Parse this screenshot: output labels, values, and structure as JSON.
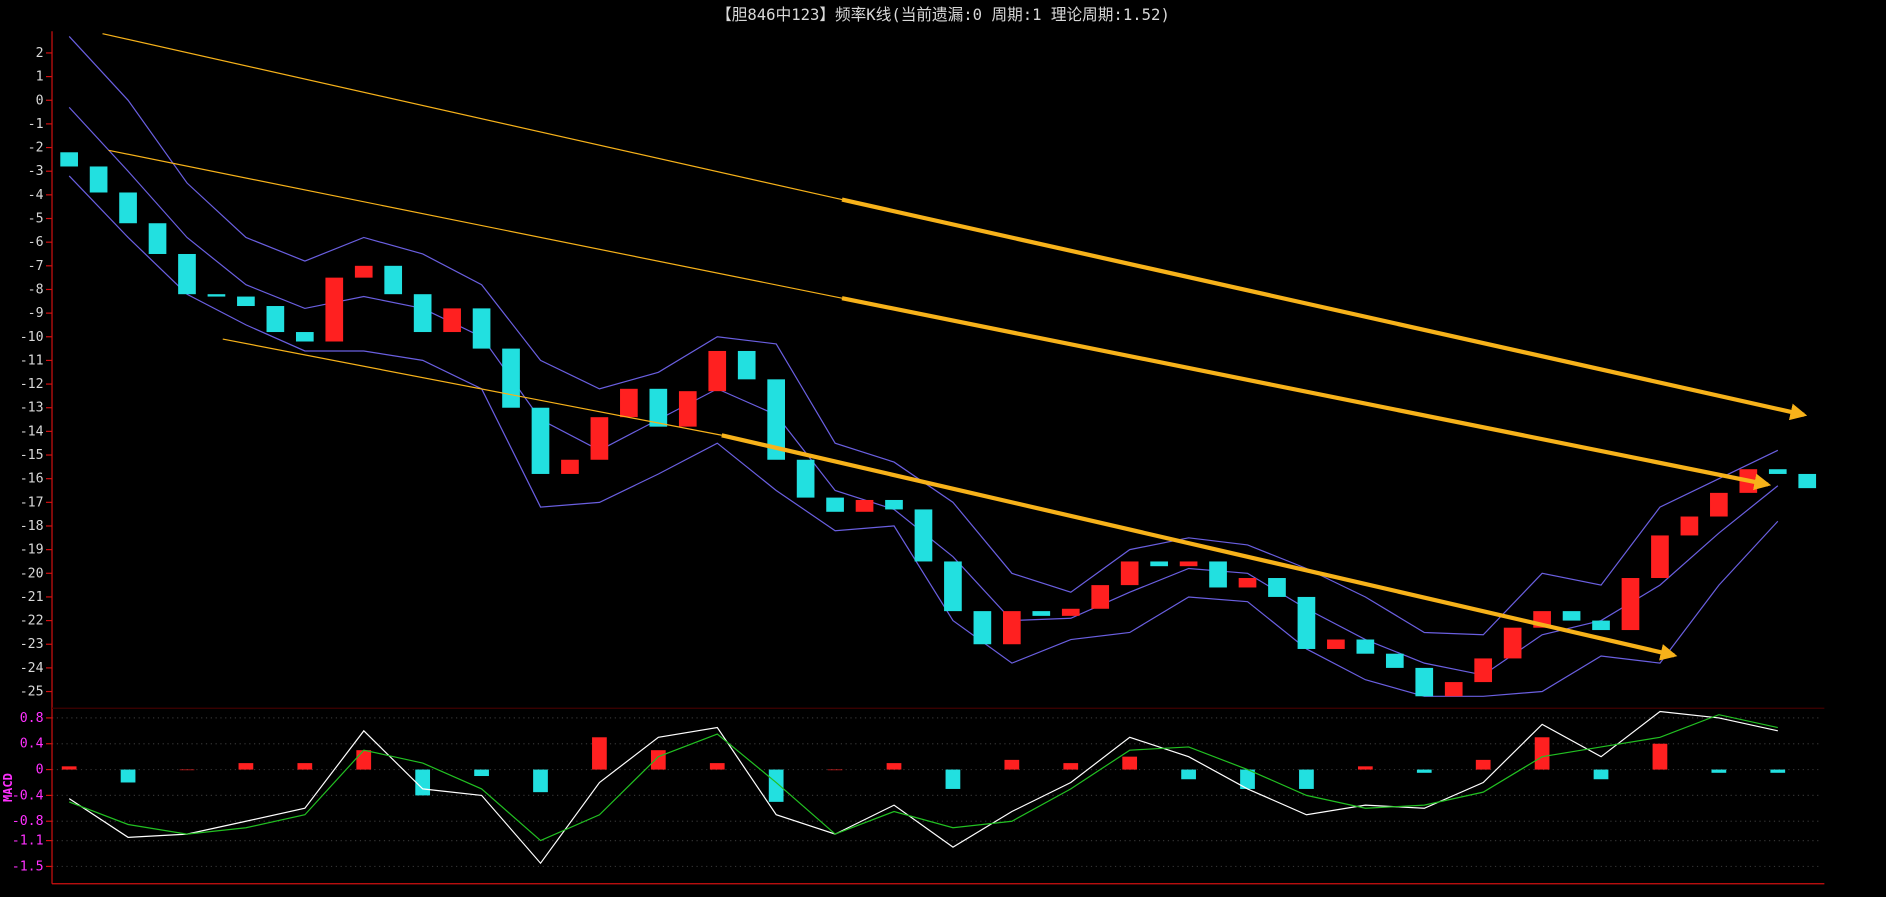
{
  "chart_data": [
    {
      "type": "candlestick",
      "title": "【胆846中123】频率K线(当前遗漏:0 周期:1 理论周期:1.52)",
      "open": [
        -2.2,
        -2.8,
        -3.9,
        -5.2,
        -6.5,
        -8.2,
        -8.3,
        -8.7,
        -9.8,
        -10.2,
        -7.5,
        -7.0,
        -8.2,
        -9.8,
        -8.8,
        -10.5,
        -13,
        -15.8,
        -15.2,
        -13.4,
        -12.2,
        -13.8,
        -12.3,
        -10.6,
        -11.8,
        -15.2,
        -16.8,
        -17.4,
        -16.9,
        -17.3,
        -19.5,
        -21.6,
        -23.0,
        -21.6,
        -21.8,
        -21.5,
        -20.5,
        -19.5,
        -19.7,
        -19.5,
        -20.6,
        -20.2,
        -21.0,
        -23.2,
        -22.8,
        -23.4,
        -24.0,
        -25.2,
        -24.6,
        -23.6,
        -22.3,
        -21.6,
        -22.0,
        -22.4,
        -20.2,
        -18.4,
        -17.6,
        -16.6,
        -15.6,
        -15.8
      ],
      "close": [
        -2.8,
        -3.9,
        -5.2,
        -6.5,
        -8.2,
        -8.3,
        -8.7,
        -9.8,
        -10.2,
        -7.5,
        -7.0,
        -8.2,
        -9.8,
        -8.8,
        -10.5,
        -13,
        -15.8,
        -15.2,
        -13.4,
        -12.2,
        -13.8,
        -12.3,
        -10.6,
        -11.8,
        -15.2,
        -16.8,
        -17.4,
        -16.9,
        -17.3,
        -19.5,
        -21.6,
        -23.0,
        -21.6,
        -21.8,
        -21.5,
        -20.5,
        -19.5,
        -19.7,
        -19.5,
        -20.6,
        -20.2,
        -21.0,
        -23.2,
        -22.8,
        -23.4,
        -24.0,
        -25.2,
        -24.6,
        -23.6,
        -22.3,
        -21.6,
        -22.0,
        -22.4,
        -20.2,
        -18.4,
        -17.6,
        -16.6,
        -15.6,
        -15.8,
        -16.4
      ],
      "up_color": "#ff2020",
      "down_color": "#22e0e0",
      "lines": [
        {
          "color": "#6a5fe0",
          "values": [
            2.7,
            0.0,
            -3.5,
            -5.8,
            -6.8,
            -5.8,
            -6.5,
            -7.8,
            -11.0,
            -12.2,
            -11.5,
            -10.0,
            -10.3,
            -14.5,
            -15.3,
            -17.0,
            -20.0,
            -20.8,
            -19.0,
            -18.5,
            -18.8,
            -19.8,
            -21.0,
            -22.5,
            -22.6,
            -20.0,
            -20.5,
            -17.2,
            -16.0,
            -14.8
          ]
        },
        {
          "color": "#6a5fe0",
          "values": [
            -0.3,
            -3.0,
            -5.8,
            -7.8,
            -8.8,
            -8.3,
            -8.8,
            -10.0,
            -13.5,
            -14.8,
            -13.5,
            -12.2,
            -13.3,
            -16.5,
            -17.3,
            -19.3,
            -22.0,
            -21.9,
            -20.8,
            -19.8,
            -20.0,
            -21.5,
            -22.8,
            -23.8,
            -24.3,
            -22.6,
            -22.0,
            -20.5,
            -18.3,
            -16.3
          ]
        },
        {
          "color": "#6a5fe0",
          "values": [
            -3.2,
            -5.8,
            -8.2,
            -9.5,
            -10.6,
            -10.6,
            -11.0,
            -12.2,
            -17.2,
            -17.0,
            -15.8,
            -14.5,
            -16.5,
            -18.2,
            -18.0,
            -22.0,
            -23.8,
            -22.8,
            -22.5,
            -21.0,
            -21.2,
            -23.2,
            -24.5,
            -25.2,
            -25.2,
            -25.0,
            -23.5,
            -23.8,
            -20.5,
            -17.8
          ]
        }
      ],
      "ylim": [
        -25.7,
        2.8
      ],
      "yticks": [
        2,
        1,
        0,
        -1,
        -2,
        -3,
        -4,
        -5,
        -6,
        -7,
        -8,
        -9,
        -10,
        -11,
        -12,
        -13,
        -14,
        -15,
        -16,
        -17,
        -18,
        -19,
        -20,
        -21,
        -22,
        -23,
        -24,
        -25
      ],
      "tick_color": "#d8d8d8"
    },
    {
      "type": "macd",
      "title": "MACD",
      "lines": [
        {
          "color": "#ffffff",
          "values": [
            -0.45,
            -1.05,
            -1.0,
            -0.8,
            -0.6,
            0.6,
            -0.3,
            -0.4,
            -1.45,
            -0.2,
            0.5,
            0.65,
            -0.7,
            -1.0,
            -0.55,
            -1.2,
            -0.65,
            -0.2,
            0.5,
            0.2,
            -0.3,
            -0.7,
            -0.55,
            -0.6,
            -0.2,
            0.7,
            0.2,
            0.9,
            0.8,
            0.6
          ]
        },
        {
          "color": "#22c022",
          "values": [
            -0.5,
            -0.85,
            -1.0,
            -0.9,
            -0.7,
            0.3,
            0.1,
            -0.3,
            -1.1,
            -0.7,
            0.2,
            0.55,
            -0.2,
            -1.0,
            -0.65,
            -0.9,
            -0.8,
            -0.3,
            0.3,
            0.35,
            0.0,
            -0.4,
            -0.6,
            -0.55,
            -0.35,
            0.2,
            0.35,
            0.5,
            0.85,
            0.65
          ]
        }
      ],
      "hist": [
        0.05,
        -0.2,
        0,
        0.1,
        0.1,
        0.3,
        -0.4,
        -0.1,
        -0.35,
        0.5,
        0.3,
        0.1,
        -0.5,
        0,
        0.1,
        -0.3,
        0.15,
        0.1,
        0.2,
        -0.15,
        -0.3,
        -0.3,
        0.05,
        -0.05,
        0.15,
        0.5,
        -0.15,
        0.4,
        -0.05,
        -0.05
      ],
      "up_color": "#ff2020",
      "down_color": "#22e0e0",
      "ylim": [
        -1.75,
        0.95
      ],
      "yticks": [
        0.8,
        0.4,
        0,
        -0.4,
        -0.8,
        -1.1,
        -1.5
      ],
      "grid": true,
      "tick_color": "#ff30ff"
    }
  ]
}
